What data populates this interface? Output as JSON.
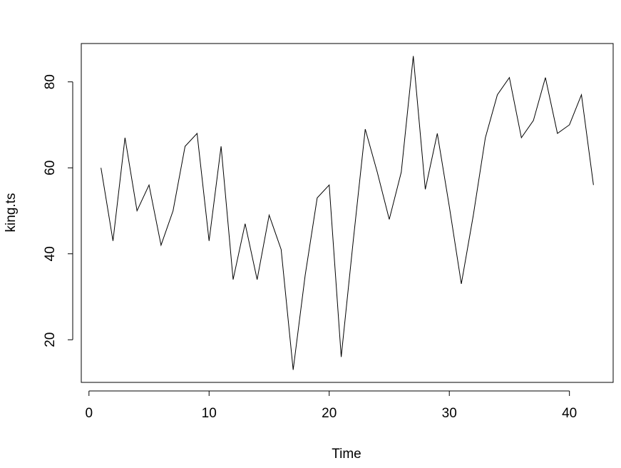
{
  "chart_data": {
    "type": "line",
    "x_label": "Time",
    "y_label": "king.ts",
    "x": [
      1,
      2,
      3,
      4,
      5,
      6,
      7,
      8,
      9,
      10,
      11,
      12,
      13,
      14,
      15,
      16,
      17,
      18,
      19,
      20,
      21,
      22,
      23,
      24,
      25,
      26,
      27,
      28,
      29,
      30,
      31,
      32,
      33,
      34,
      35,
      36,
      37,
      38,
      39,
      40,
      41,
      42
    ],
    "values": [
      60,
      43,
      67,
      50,
      56,
      42,
      50,
      65,
      68,
      43,
      65,
      34,
      47,
      34,
      49,
      41,
      13,
      35,
      53,
      56,
      16,
      43,
      69,
      59,
      48,
      59,
      86,
      55,
      68,
      51,
      33,
      49,
      67,
      77,
      81,
      67,
      71,
      81,
      68,
      70,
      77,
      56
    ],
    "color": "#000000",
    "xlim": [
      -0.64,
      43.64
    ],
    "xticks": [
      0,
      10,
      20,
      30,
      40
    ],
    "ylim": [
      10.08,
      88.92
    ],
    "yticks": [
      20,
      40,
      60,
      80
    ]
  }
}
